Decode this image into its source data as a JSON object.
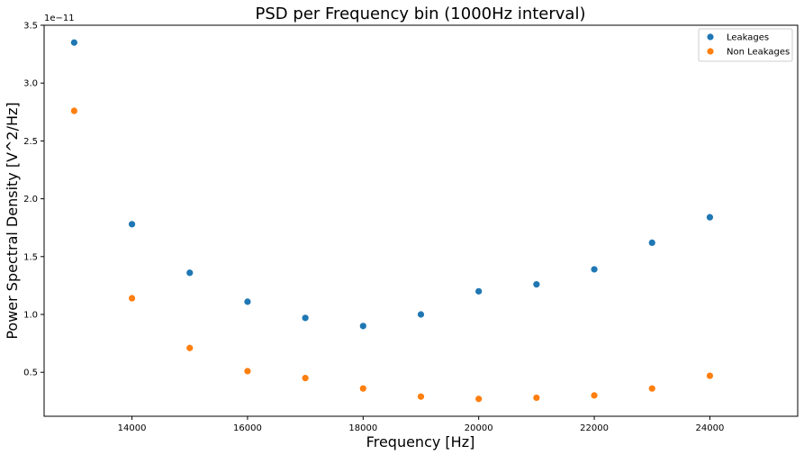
{
  "chart_data": {
    "type": "scatter",
    "title": "PSD per Frequency bin (1000Hz interval)",
    "xlabel": "Frequency [Hz]",
    "ylabel": "Power Spectral Density [V^2/Hz]",
    "y_offset_label": "1e−11",
    "xlim": [
      12480,
      25520
    ],
    "ylim": [
      0.12,
      3.5
    ],
    "x_ticks": [
      14000,
      16000,
      18000,
      20000,
      22000,
      24000
    ],
    "y_ticks": [
      0.5,
      1.0,
      1.5,
      2.0,
      2.5,
      3.0,
      3.5
    ],
    "x_tick_labels": [
      "14000",
      "16000",
      "18000",
      "20000",
      "22000",
      "24000"
    ],
    "y_tick_labels": [
      "0.5",
      "1.0",
      "1.5",
      "2.0",
      "2.5",
      "3.0",
      "3.5"
    ],
    "grid": false,
    "legend_position": "top-right",
    "x": [
      13000,
      14000,
      15000,
      16000,
      17000,
      18000,
      19000,
      20000,
      21000,
      22000,
      23000,
      24000
    ],
    "series": [
      {
        "name": "Leakages",
        "color": "#1f77b4",
        "values": [
          3.35,
          1.78,
          1.36,
          1.11,
          0.97,
          0.9,
          1.0,
          1.2,
          1.26,
          1.39,
          1.62,
          1.84
        ]
      },
      {
        "name": "Non Leakages",
        "color": "#ff7f0e",
        "values": [
          2.76,
          1.14,
          0.71,
          0.51,
          0.45,
          0.36,
          0.29,
          0.27,
          0.28,
          0.3,
          0.36,
          0.47
        ]
      }
    ]
  }
}
